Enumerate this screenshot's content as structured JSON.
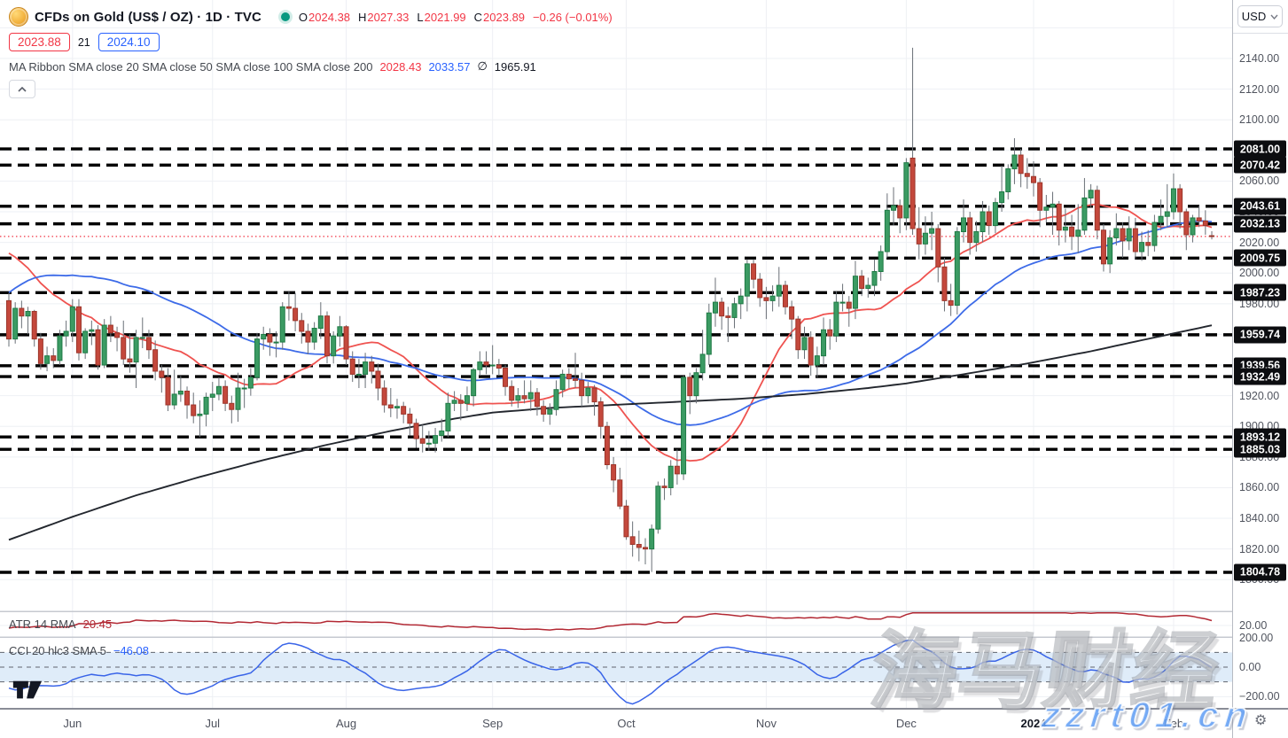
{
  "header": {
    "symbol_title": "CFDs on Gold (US$ / OZ) · 1D · TVC",
    "ohlc": {
      "o_label": "O",
      "o": "2024.38",
      "h_label": "H",
      "h": "2027.33",
      "l_label": "L",
      "l": "2021.99",
      "c_label": "C",
      "c": "2023.89",
      "change": "−0.26 (−0.01%)"
    },
    "bid": "2023.88",
    "countdown": "21",
    "ask": "2024.10",
    "ma_ribbon_label": "MA Ribbon SMA close 20 SMA close 50 SMA close 100 SMA close 200",
    "ma_values": {
      "sma20": "2028.43",
      "sma50": "2033.57",
      "sma100": "∅",
      "sma200": "1965.91"
    }
  },
  "axis": {
    "currency": "USD"
  },
  "panes": {
    "atr": {
      "label": "ATR 14 RMA",
      "value": "20.45",
      "axis_tick": 20
    },
    "cci": {
      "label": "CCI 20 hlc3 SMA 5",
      "value": "−46.08",
      "axis_ticks": [
        200,
        0,
        -200
      ]
    }
  },
  "watermark": {
    "cn": "海马财经",
    "url": "zzrt01.cn"
  },
  "colors": {
    "up": "#3b9b63",
    "up_border": "#1f7a45",
    "down": "#c4483c",
    "down_border": "#9c362b",
    "sma20": "#ef5350",
    "sma50": "#3d6be8",
    "sma200": "#23272e",
    "level": "#000000",
    "last_price_line": "#f23645",
    "atr_line": "#b22833",
    "cci_line": "#3964e8",
    "cci_band": "#dfecf9",
    "band_dash": "#60646e",
    "badge_bg": "#0c0d10",
    "badge_text": "#ffffff",
    "grid": "#eef0f4",
    "axis_text": "#50545e",
    "accent_red": "#f23645",
    "accent_blue": "#2962ff",
    "accent_green": "#089981"
  },
  "chart_data": {
    "type": "candlestick",
    "title": "CFDs on Gold (US$ / OZ) 1D TVC",
    "ylabel": "USD",
    "y_axis_ticks": [
      2140,
      2120,
      2100,
      2080,
      2060,
      2040,
      2020,
      2000,
      1980,
      1960,
      1940,
      1920,
      1900,
      1880,
      1860,
      1840,
      1820,
      1800
    ],
    "price_levels": [
      2081.0,
      2070.42,
      2043.61,
      2032.13,
      2009.75,
      1987.23,
      1959.74,
      1939.56,
      1932.49,
      1893.12,
      1885.03,
      1804.78
    ],
    "last_price": 2023.88,
    "months": [
      {
        "label": "Jun",
        "index": 10,
        "bold": false
      },
      {
        "label": "Jul",
        "index": 32,
        "bold": false
      },
      {
        "label": "Aug",
        "index": 53,
        "bold": false
      },
      {
        "label": "Sep",
        "index": 76,
        "bold": false
      },
      {
        "label": "Oct",
        "index": 97,
        "bold": false
      },
      {
        "label": "Nov",
        "index": 119,
        "bold": false
      },
      {
        "label": "Dec",
        "index": 141,
        "bold": false
      },
      {
        "label": "2024",
        "index": 161,
        "bold": true
      },
      {
        "label": "Feb",
        "index": 183,
        "bold": false
      }
    ],
    "prehistory_closes": [
      1818,
      1828,
      1845,
      1860,
      1872,
      1890,
      1912,
      1938,
      1965,
      1972,
      1960,
      1974,
      1978,
      1968,
      1982,
      1993,
      2004,
      2012,
      2024,
      2008,
      1990,
      2012,
      2022,
      2038,
      2028,
      2010,
      2004,
      1992,
      1998,
      2006,
      2018,
      2030,
      2041,
      2048,
      2055,
      2039,
      2022,
      2016,
      2011,
      2020,
      2028,
      2016,
      2005,
      1993,
      2010,
      2016,
      2003,
      1990,
      1978,
      1982
    ],
    "candles": [
      [
        1982,
        1987,
        1952,
        1957
      ],
      [
        1957,
        1981,
        1954,
        1977
      ],
      [
        1977,
        1982,
        1964,
        1972
      ],
      [
        1972,
        1978,
        1960,
        1975
      ],
      [
        1975,
        1976,
        1952,
        1957
      ],
      [
        1957,
        1961,
        1937,
        1941
      ],
      [
        1941,
        1952,
        1936,
        1946
      ],
      [
        1946,
        1951,
        1938,
        1943
      ],
      [
        1943,
        1963,
        1940,
        1959
      ],
      [
        1959,
        1969,
        1952,
        1962
      ],
      [
        1962,
        1983,
        1955,
        1978
      ],
      [
        1978,
        1983,
        1943,
        1948
      ],
      [
        1948,
        1964,
        1944,
        1962
      ],
      [
        1962,
        1969,
        1953,
        1963
      ],
      [
        1963,
        1966,
        1937,
        1940
      ],
      [
        1940,
        1970,
        1938,
        1966
      ],
      [
        1966,
        1972,
        1955,
        1961
      ],
      [
        1961,
        1965,
        1949,
        1958
      ],
      [
        1958,
        1969,
        1940,
        1944
      ],
      [
        1944,
        1960,
        1935,
        1942
      ],
      [
        1942,
        1963,
        1925,
        1958
      ],
      [
        1958,
        1971,
        1951,
        1958
      ],
      [
        1958,
        1963,
        1944,
        1950
      ],
      [
        1950,
        1956,
        1930,
        1936
      ],
      [
        1936,
        1940,
        1922,
        1932
      ],
      [
        1932,
        1938,
        1910,
        1914
      ],
      [
        1914,
        1937,
        1911,
        1921
      ],
      [
        1921,
        1933,
        1916,
        1923
      ],
      [
        1923,
        1926,
        1905,
        1914
      ],
      [
        1914,
        1922,
        1902,
        1907
      ],
      [
        1907,
        1917,
        1893,
        1908
      ],
      [
        1908,
        1922,
        1900,
        1919
      ],
      [
        1919,
        1929,
        1910,
        1921
      ],
      [
        1921,
        1932,
        1917,
        1926
      ],
      [
        1926,
        1930,
        1910,
        1915
      ],
      [
        1915,
        1920,
        1902,
        1911
      ],
      [
        1911,
        1935,
        1903,
        1925
      ],
      [
        1925,
        1931,
        1912,
        1925
      ],
      [
        1925,
        1938,
        1920,
        1932
      ],
      [
        1932,
        1961,
        1930,
        1957
      ],
      [
        1957,
        1965,
        1950,
        1960
      ],
      [
        1960,
        1964,
        1946,
        1955
      ],
      [
        1955,
        1962,
        1945,
        1955
      ],
      [
        1955,
        1981,
        1950,
        1978
      ],
      [
        1978,
        1988,
        1969,
        1977
      ],
      [
        1977,
        1987,
        1962,
        1969
      ],
      [
        1969,
        1974,
        1954,
        1962
      ],
      [
        1962,
        1967,
        1947,
        1955
      ],
      [
        1955,
        1968,
        1950,
        1964
      ],
      [
        1964,
        1981,
        1957,
        1972
      ],
      [
        1972,
        1975,
        1941,
        1946
      ],
      [
        1946,
        1962,
        1941,
        1959
      ],
      [
        1959,
        1972,
        1952,
        1965
      ],
      [
        1965,
        1966,
        1940,
        1944
      ],
      [
        1944,
        1949,
        1929,
        1934
      ],
      [
        1934,
        1944,
        1925,
        1934
      ],
      [
        1934,
        1948,
        1925,
        1942
      ],
      [
        1942,
        1946,
        1928,
        1936
      ],
      [
        1936,
        1941,
        1917,
        1925
      ],
      [
        1925,
        1930,
        1909,
        1914
      ],
      [
        1914,
        1925,
        1906,
        1912
      ],
      [
        1912,
        1918,
        1905,
        1913
      ],
      [
        1913,
        1916,
        1902,
        1908
      ],
      [
        1908,
        1912,
        1894,
        1902
      ],
      [
        1902,
        1905,
        1886,
        1892
      ],
      [
        1892,
        1901,
        1883,
        1889
      ],
      [
        1889,
        1897,
        1884,
        1889
      ],
      [
        1889,
        1899,
        1883,
        1894
      ],
      [
        1894,
        1905,
        1890,
        1897
      ],
      [
        1897,
        1922,
        1893,
        1915
      ],
      [
        1915,
        1923,
        1910,
        1917
      ],
      [
        1917,
        1921,
        1904,
        1915
      ],
      [
        1915,
        1926,
        1910,
        1920
      ],
      [
        1920,
        1938,
        1913,
        1937
      ],
      [
        1937,
        1949,
        1933,
        1942
      ],
      [
        1942,
        1949,
        1934,
        1940
      ],
      [
        1940,
        1953,
        1934,
        1940
      ],
      [
        1940,
        1944,
        1933,
        1938
      ],
      [
        1938,
        1940,
        1920,
        1926
      ],
      [
        1926,
        1930,
        1913,
        1917
      ],
      [
        1917,
        1925,
        1912,
        1920
      ],
      [
        1920,
        1930,
        1915,
        1918
      ],
      [
        1918,
        1930,
        1910,
        1922
      ],
      [
        1922,
        1925,
        1907,
        1913
      ],
      [
        1913,
        1917,
        1903,
        1908
      ],
      [
        1908,
        1915,
        1901,
        1911
      ],
      [
        1911,
        1930,
        1907,
        1924
      ],
      [
        1924,
        1937,
        1919,
        1934
      ],
      [
        1934,
        1938,
        1925,
        1931
      ],
      [
        1931,
        1948,
        1925,
        1930
      ],
      [
        1930,
        1935,
        1913,
        1920
      ],
      [
        1920,
        1929,
        1915,
        1925
      ],
      [
        1925,
        1927,
        1907,
        1916
      ],
      [
        1916,
        1919,
        1892,
        1900
      ],
      [
        1900,
        1903,
        1872,
        1875
      ],
      [
        1875,
        1880,
        1857,
        1865
      ],
      [
        1865,
        1873,
        1846,
        1848
      ],
      [
        1848,
        1852,
        1826,
        1828
      ],
      [
        1828,
        1838,
        1815,
        1823
      ],
      [
        1823,
        1832,
        1812,
        1821
      ],
      [
        1821,
        1827,
        1810,
        1820
      ],
      [
        1820,
        1836,
        1805,
        1833
      ],
      [
        1833,
        1864,
        1830,
        1861
      ],
      [
        1861,
        1866,
        1852,
        1860
      ],
      [
        1860,
        1878,
        1855,
        1874
      ],
      [
        1874,
        1885,
        1862,
        1869
      ],
      [
        1869,
        1933,
        1865,
        1932
      ],
      [
        1932,
        1935,
        1908,
        1920
      ],
      [
        1920,
        1938,
        1915,
        1935
      ],
      [
        1935,
        1963,
        1930,
        1947
      ],
      [
        1947,
        1980,
        1940,
        1974
      ],
      [
        1974,
        1997,
        1965,
        1981
      ],
      [
        1981,
        1984,
        1963,
        1972
      ],
      [
        1972,
        1978,
        1955,
        1971
      ],
      [
        1971,
        1984,
        1964,
        1980
      ],
      [
        1980,
        1990,
        1970,
        1985
      ],
      [
        1985,
        2009,
        1975,
        2006
      ],
      [
        2006,
        2009,
        1990,
        1996
      ],
      [
        1996,
        2000,
        1978,
        1984
      ],
      [
        1984,
        1991,
        1970,
        1982
      ],
      [
        1982,
        1992,
        1975,
        1985
      ],
      [
        1985,
        2004,
        1978,
        1992
      ],
      [
        1992,
        1995,
        1973,
        1978
      ],
      [
        1978,
        1982,
        1957,
        1970
      ],
      [
        1970,
        1972,
        1944,
        1950
      ],
      [
        1950,
        1965,
        1944,
        1958
      ],
      [
        1958,
        1962,
        1933,
        1940
      ],
      [
        1940,
        1952,
        1932,
        1946
      ],
      [
        1946,
        1971,
        1940,
        1963
      ],
      [
        1963,
        1970,
        1950,
        1959
      ],
      [
        1959,
        1988,
        1955,
        1981
      ],
      [
        1981,
        1993,
        1975,
        1981
      ],
      [
        1981,
        1985,
        1965,
        1977
      ],
      [
        1977,
        2008,
        1970,
        1998
      ],
      [
        1998,
        2002,
        1985,
        1990
      ],
      [
        1990,
        1997,
        1984,
        1992
      ],
      [
        1992,
        2009,
        1985,
        2001
      ],
      [
        2001,
        2018,
        1995,
        2014
      ],
      [
        2014,
        2052,
        2010,
        2041
      ],
      [
        2041,
        2056,
        2031,
        2044
      ],
      [
        2044,
        2048,
        2026,
        2036
      ],
      [
        2036,
        2075,
        2028,
        2072
      ],
      [
        2075,
        2147,
        2025,
        2029
      ],
      [
        2029,
        2043,
        2009,
        2019
      ],
      [
        2019,
        2037,
        2012,
        2026
      ],
      [
        2026,
        2040,
        2015,
        2029
      ],
      [
        2029,
        2032,
        1994,
        2004
      ],
      [
        2004,
        2010,
        1975,
        1982
      ],
      [
        1982,
        1993,
        1972,
        1979
      ],
      [
        1979,
        2030,
        1973,
        2027
      ],
      [
        2027,
        2048,
        2020,
        2036
      ],
      [
        2036,
        2040,
        2012,
        2020
      ],
      [
        2020,
        2034,
        2014,
        2027
      ],
      [
        2027,
        2047,
        2020,
        2040
      ],
      [
        2040,
        2044,
        2025,
        2031
      ],
      [
        2031,
        2049,
        2026,
        2046
      ],
      [
        2046,
        2070,
        2040,
        2053
      ],
      [
        2053,
        2071,
        2048,
        2068
      ],
      [
        2068,
        2088,
        2058,
        2077
      ],
      [
        2077,
        2081,
        2056,
        2065
      ],
      [
        2065,
        2075,
        2055,
        2063
      ],
      [
        2063,
        2073,
        2050,
        2059
      ],
      [
        2059,
        2062,
        2030,
        2041
      ],
      [
        2041,
        2051,
        2033,
        2043
      ],
      [
        2043,
        2053,
        2025,
        2045
      ],
      [
        2045,
        2047,
        2018,
        2028
      ],
      [
        2028,
        2042,
        2020,
        2030
      ],
      [
        2030,
        2038,
        2015,
        2024
      ],
      [
        2024,
        2045,
        2013,
        2028
      ],
      [
        2028,
        2062,
        2025,
        2049
      ],
      [
        2049,
        2058,
        2043,
        2054
      ],
      [
        2054,
        2057,
        2022,
        2028
      ],
      [
        2028,
        2032,
        2001,
        2006
      ],
      [
        2006,
        2028,
        2000,
        2023
      ],
      [
        2023,
        2039,
        2018,
        2029
      ],
      [
        2029,
        2033,
        2010,
        2021
      ],
      [
        2021,
        2037,
        2015,
        2029
      ],
      [
        2029,
        2036,
        2009,
        2014
      ],
      [
        2014,
        2027,
        2008,
        2020
      ],
      [
        2020,
        2028,
        2011,
        2018
      ],
      [
        2018,
        2038,
        2014,
        2033
      ],
      [
        2033,
        2048,
        2028,
        2037
      ],
      [
        2037,
        2058,
        2030,
        2040
      ],
      [
        2040,
        2065,
        2035,
        2055
      ],
      [
        2055,
        2058,
        2029,
        2040
      ],
      [
        2040,
        2042,
        2015,
        2025
      ],
      [
        2025,
        2038,
        2020,
        2036
      ],
      [
        2036,
        2044,
        2030,
        2034
      ],
      [
        2034,
        2041,
        2025,
        2031
      ],
      [
        2024.38,
        2027.33,
        2021.99,
        2023.89
      ]
    ],
    "sma200_points": [
      [
        0,
        1826
      ],
      [
        10,
        1841
      ],
      [
        20,
        1855
      ],
      [
        30,
        1867
      ],
      [
        40,
        1878
      ],
      [
        50,
        1888
      ],
      [
        60,
        1897
      ],
      [
        70,
        1905
      ],
      [
        76,
        1909
      ],
      [
        85,
        1912
      ],
      [
        95,
        1914
      ],
      [
        105,
        1916
      ],
      [
        115,
        1918
      ],
      [
        125,
        1921
      ],
      [
        135,
        1925
      ],
      [
        141,
        1928
      ],
      [
        150,
        1934
      ],
      [
        160,
        1941
      ],
      [
        170,
        1949
      ],
      [
        180,
        1958
      ],
      [
        189,
        1965.9
      ]
    ],
    "indicators": {
      "atr": {
        "period": 14,
        "method": "RMA",
        "last": 20.45
      },
      "cci": {
        "period": 20,
        "source": "hlc3",
        "smooth": 5,
        "last": -46.08,
        "band": [
          -100,
          100
        ]
      }
    }
  }
}
